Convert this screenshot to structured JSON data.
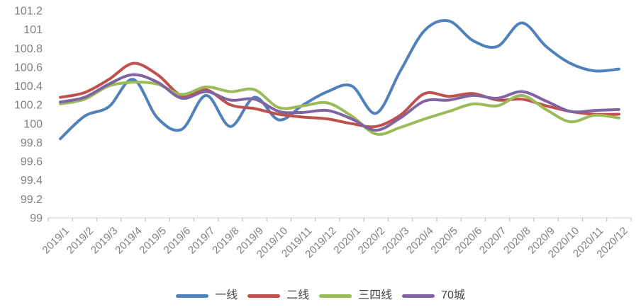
{
  "chart_data": {
    "type": "line",
    "title": "",
    "smooth": true,
    "grid": false,
    "legend_position": "bottom",
    "axis_color": "#d9d9d9",
    "tick_color": "#bfbfbf",
    "label_color": "#808080",
    "x_categories": [
      "2019/1",
      "2019/2",
      "2019/3",
      "2019/4",
      "2019/5",
      "2019/6",
      "2019/7",
      "2019/8",
      "2019/9",
      "2019/10",
      "2019/11",
      "2019/12",
      "2020/1",
      "2020/2",
      "2020/3",
      "2020/4",
      "2020/5",
      "2020/6",
      "2020/7",
      "2020/8",
      "2020/9",
      "2020/10",
      "2020/11",
      "2020/12"
    ],
    "y_axis": {
      "min": 99,
      "max": 101.2,
      "step": 0.2,
      "tick_labels": [
        "99",
        "99.2",
        "99.4",
        "99.6",
        "99.8",
        "100",
        "100.2",
        "100.4",
        "100.6",
        "100.8",
        "101",
        "101.2"
      ]
    },
    "series": [
      {
        "name": "一线",
        "color": "#4F81BD",
        "values": [
          99.84,
          100.08,
          100.18,
          100.47,
          100.06,
          99.94,
          100.3,
          99.97,
          100.28,
          100.04,
          100.2,
          100.34,
          100.4,
          100.11,
          100.56,
          100.99,
          101.09,
          100.88,
          100.82,
          101.07,
          100.82,
          100.64,
          100.56,
          100.58
        ]
      },
      {
        "name": "二线",
        "color": "#C0504D",
        "values": [
          100.28,
          100.33,
          100.47,
          100.64,
          100.52,
          100.3,
          100.36,
          100.2,
          100.16,
          100.1,
          100.07,
          100.05,
          100.0,
          99.97,
          100.09,
          100.32,
          100.29,
          100.32,
          100.25,
          100.26,
          100.19,
          100.13,
          100.1,
          100.1
        ]
      },
      {
        "name": "三四线",
        "color": "#9BBB59",
        "values": [
          100.21,
          100.26,
          100.4,
          100.44,
          100.42,
          100.31,
          100.39,
          100.34,
          100.36,
          100.17,
          100.19,
          100.22,
          100.08,
          99.89,
          99.96,
          100.05,
          100.13,
          100.21,
          100.19,
          100.3,
          100.15,
          100.02,
          100.09,
          100.06
        ]
      },
      {
        "name": "70城",
        "color": "#8064A2",
        "values": [
          100.23,
          100.28,
          100.42,
          100.52,
          100.44,
          100.27,
          100.34,
          100.25,
          100.26,
          100.13,
          100.12,
          100.14,
          100.05,
          99.93,
          100.06,
          100.24,
          100.25,
          100.3,
          100.27,
          100.34,
          100.24,
          100.13,
          100.14,
          100.15
        ]
      }
    ]
  }
}
